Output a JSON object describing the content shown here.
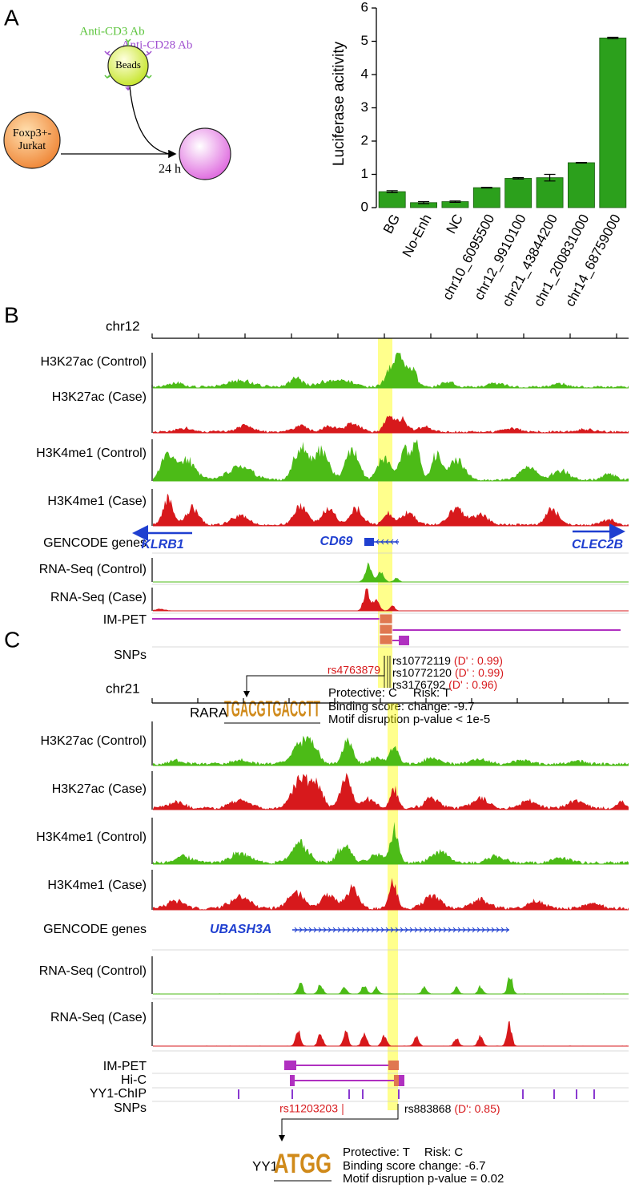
{
  "panel_a": {
    "label": "A",
    "diagram": {
      "anti_cd3": "Anti-CD3 Ab",
      "anti_cd28": "Anti-CD28 Ab",
      "beads": "Beads",
      "cell_line1": "Foxp3+-",
      "cell_line2": "Jurkat",
      "time": "24 h"
    },
    "chart_data": {
      "type": "bar",
      "ylabel": "Luciferase acitivity",
      "categories": [
        "BG",
        "No-Enh",
        "NC",
        "chr10_6095500",
        "chr12_9910100",
        "chr21_43844200",
        "chr1_200831000",
        "chr14_68759000"
      ],
      "values": [
        0.48,
        0.15,
        0.18,
        0.6,
        0.88,
        0.9,
        1.35,
        5.1
      ],
      "errors": [
        0.03,
        0.03,
        0.02,
        0.01,
        0.02,
        0.1,
        0.01,
        0.02
      ],
      "color": "#2ca01c",
      "ylim": [
        0,
        6
      ],
      "yticks": [
        0,
        1,
        2,
        3,
        4,
        5,
        6
      ]
    }
  },
  "panel_b": {
    "label": "B",
    "chrom": "chr12",
    "tracks": [
      {
        "label": "H3K27ac (Control)",
        "color": "#4cbb17"
      },
      {
        "label": "H3K27ac (Case)",
        "color": "#d7191c"
      },
      {
        "label": "H3K4me1 (Control)",
        "color": "#4cbb17"
      },
      {
        "label": "H3K4me1 (Case)",
        "color": "#d7191c"
      },
      {
        "label": "GENCODE genes"
      },
      {
        "label": "RNA-Seq (Control)",
        "color": "#4cbb17"
      },
      {
        "label": "RNA-Seq (Case)",
        "color": "#d7191c"
      },
      {
        "label": "IM-PET"
      },
      {
        "label": "SNPs"
      }
    ],
    "genes": [
      "KLRB1",
      "CD69",
      "CLEC2B"
    ],
    "snps": [
      {
        "id": "rs4763879"
      },
      {
        "id": "rs10772119",
        "ld": "(D' : 0.99)"
      },
      {
        "id": "rs10772120",
        "ld": "(D' : 0.99)"
      },
      {
        "id": "rs3176792",
        "ld": "(D' : 0.96)"
      }
    ],
    "motif": {
      "tf": "RARA",
      "logo": "TGACGTGACCTT",
      "protective": "Protective: C",
      "risk": "Risk: T",
      "score": "Binding score: change: -9.7",
      "pvalue": "Motif disruption p-value < 1e-5"
    }
  },
  "panel_c": {
    "label": "C",
    "chrom": "chr21",
    "tracks": [
      {
        "label": "H3K27ac (Control)",
        "color": "#4cbb17"
      },
      {
        "label": "H3K27ac (Case)",
        "color": "#d7191c"
      },
      {
        "label": "H3K4me1 (Control)",
        "color": "#4cbb17"
      },
      {
        "label": "H3K4me1 (Case)",
        "color": "#d7191c"
      },
      {
        "label": "GENCODE genes"
      },
      {
        "label": "RNA-Seq (Control)",
        "color": "#4cbb17"
      },
      {
        "label": "RNA-Seq (Case)",
        "color": "#d7191c"
      },
      {
        "label": "IM-PET"
      },
      {
        "label": "Hi-C"
      },
      {
        "label": "YY1-ChIP"
      },
      {
        "label": "SNPs"
      }
    ],
    "genes": [
      "UBASH3A"
    ],
    "snps": [
      {
        "id": "rs11203203"
      },
      {
        "id": "rs883868",
        "ld": "(D': 0.85)"
      }
    ],
    "motif": {
      "tf": "YY1",
      "logo": "ATGG",
      "protective": "Protective: T",
      "risk": "Risk: C",
      "score": "Binding score change: -6.7",
      "pvalue": "Motif disruption p-value = 0.02"
    }
  }
}
